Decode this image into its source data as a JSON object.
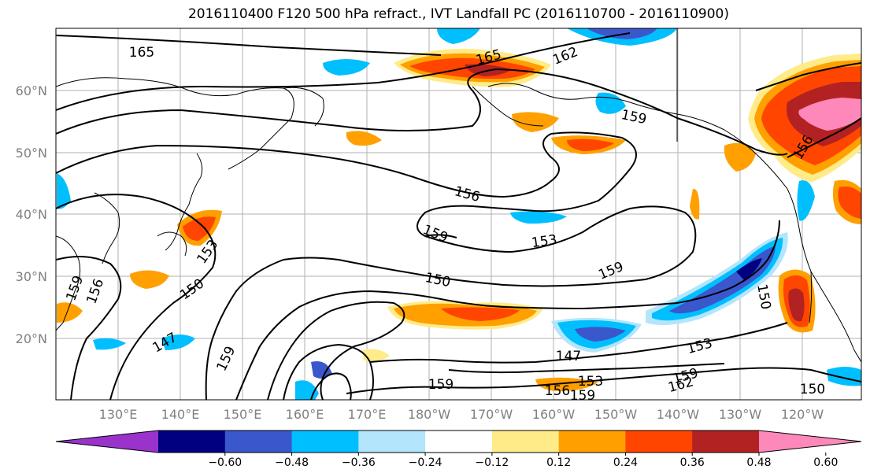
{
  "title": "2016110400 F120 500 hPa refract., IVT Landfall PC (2016110700 - 2016110900)",
  "lat_labels": [
    "60°N",
    "50°N",
    "40°N",
    "30°N",
    "20°N"
  ],
  "lon_labels": [
    "130°E",
    "140°E",
    "150°E",
    "160°E",
    "170°E",
    "180°W",
    "170°W",
    "160°W",
    "150°W",
    "140°W",
    "130°W",
    "120°W"
  ],
  "colorbar": {
    "colors": [
      "#9933cc",
      "#000080",
      "#3a57cc",
      "#00bfff",
      "#b3e5fc",
      "#ffffff",
      "#ffeb88",
      "#ffa000",
      "#ff4500",
      "#b22222",
      "#ff88bb"
    ],
    "labels": [
      "-0.60",
      "-0.48",
      "-0.36",
      "-0.24",
      "-0.12",
      "0.12",
      "0.24",
      "0.36",
      "0.48",
      "0.60"
    ]
  },
  "contour_labels": [
    {
      "text": "165"
    },
    {
      "text": "165"
    },
    {
      "text": "162"
    },
    {
      "text": "159"
    },
    {
      "text": "156"
    },
    {
      "text": "156"
    },
    {
      "text": "159"
    },
    {
      "text": "153"
    },
    {
      "text": "159"
    },
    {
      "text": "150"
    },
    {
      "text": "150"
    },
    {
      "text": "153"
    },
    {
      "text": "159"
    },
    {
      "text": "156"
    },
    {
      "text": "150"
    },
    {
      "text": "147"
    },
    {
      "text": "159"
    },
    {
      "text": "147"
    },
    {
      "text": "153"
    },
    {
      "text": "159"
    },
    {
      "text": "156"
    },
    {
      "text": "153"
    },
    {
      "text": "159"
    },
    {
      "text": "162"
    },
    {
      "text": "159"
    },
    {
      "text": "150"
    }
  ]
}
